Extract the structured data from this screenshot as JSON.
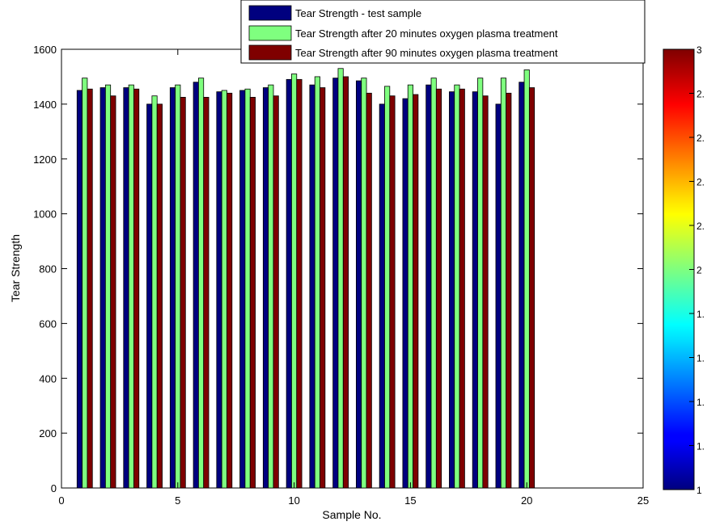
{
  "chart_data": {
    "type": "bar",
    "title": "",
    "xlabel": "Sample No.",
    "ylabel": "Tear Strength",
    "xlim": [
      0,
      25
    ],
    "ylim": [
      0,
      1600
    ],
    "xticks": [
      "0",
      "5",
      "10",
      "15",
      "20",
      "25"
    ],
    "yticks": [
      "0",
      "200",
      "400",
      "600",
      "800",
      "1000",
      "1200",
      "1400",
      "1600"
    ],
    "grid": false,
    "legend_position": "top",
    "x": [
      1,
      2,
      3,
      4,
      5,
      6,
      7,
      8,
      9,
      10,
      11,
      12,
      13,
      14,
      15,
      16,
      17,
      18,
      19,
      20
    ],
    "series": [
      {
        "name": "Tear Strength - test sample",
        "color": "#00007f",
        "values": [
          1450,
          1460,
          1460,
          1400,
          1460,
          1480,
          1445,
          1450,
          1460,
          1490,
          1470,
          1495,
          1485,
          1400,
          1420,
          1470,
          1445,
          1445,
          1400,
          1480
        ]
      },
      {
        "name": "Tear Strength after 20 minutes oxygen plasma treatment",
        "color": "#7fff7f",
        "values": [
          1495,
          1470,
          1470,
          1430,
          1470,
          1495,
          1450,
          1455,
          1470,
          1510,
          1500,
          1530,
          1495,
          1465,
          1470,
          1495,
          1470,
          1495,
          1495,
          1525
        ]
      },
      {
        "name": "Tear Strength after 90 minutes oxygen plasma treatment",
        "color": "#7f0000",
        "values": [
          1455,
          1430,
          1455,
          1400,
          1425,
          1425,
          1440,
          1425,
          1430,
          1490,
          1460,
          1500,
          1440,
          1430,
          1435,
          1455,
          1455,
          1430,
          1440,
          1460
        ]
      }
    ],
    "colorbar": {
      "colormap": "jet",
      "range": [
        1,
        3
      ],
      "labels": [
        "3",
        "2.",
        "2.",
        "2.",
        "2.",
        "2",
        "1.",
        "1.",
        "1.",
        "1.",
        "1"
      ]
    }
  }
}
